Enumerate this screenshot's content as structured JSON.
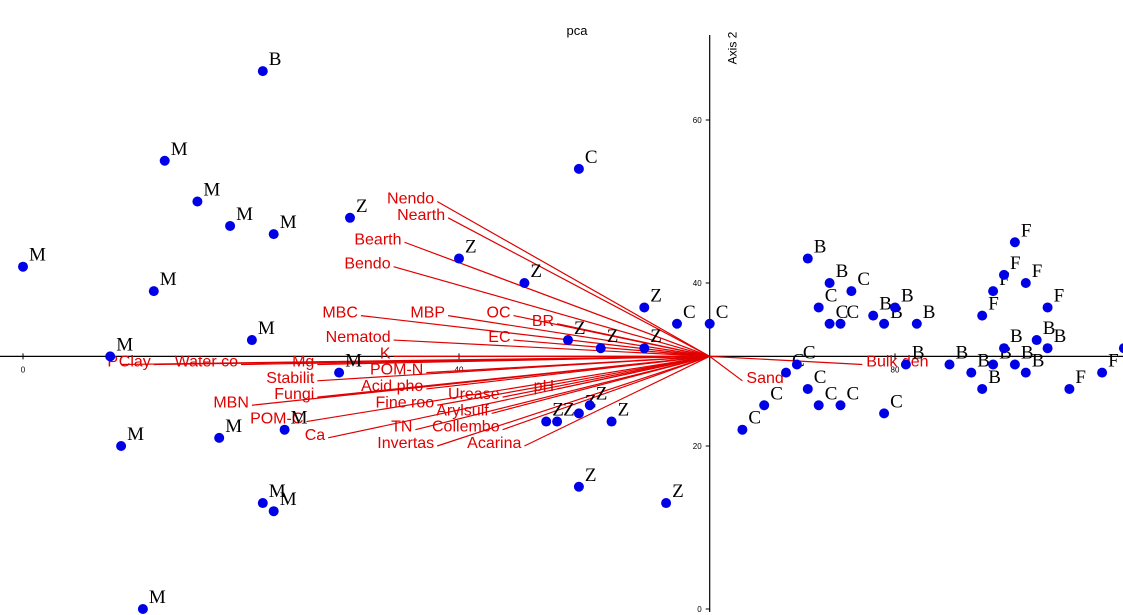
{
  "colors": {
    "points": "#0000e6",
    "vectors": "#e00000",
    "axes": "#000000"
  },
  "chart_data": {
    "type": "scatter",
    "title": "pca",
    "xlabel": "",
    "ylabel": "Axis 2",
    "x_ticks": [
      "0",
      "40",
      "80"
    ],
    "y_ticks": [
      "0",
      "20",
      "40",
      "60"
    ],
    "y_axis_at_x": 63,
    "x_axis_at_y": 31,
    "points": [
      {
        "x": 22,
        "y": 66,
        "label": "B"
      },
      {
        "x": 51,
        "y": 54,
        "label": "C"
      },
      {
        "x": 30,
        "y": 48,
        "label": "Z"
      },
      {
        "x": 40,
        "y": 43,
        "label": "Z"
      },
      {
        "x": 46,
        "y": 40,
        "label": "Z"
      },
      {
        "x": 57,
        "y": 37,
        "label": "Z"
      },
      {
        "x": 60,
        "y": 35,
        "label": "C"
      },
      {
        "x": 63,
        "y": 35,
        "label": "C"
      },
      {
        "x": 50,
        "y": 33,
        "label": "Z"
      },
      {
        "x": 53,
        "y": 32,
        "label": "Z"
      },
      {
        "x": 57,
        "y": 32,
        "label": "Z"
      },
      {
        "x": 29,
        "y": 29,
        "label": "M"
      },
      {
        "x": 8,
        "y": 31,
        "label": "M"
      },
      {
        "x": 0,
        "y": 42,
        "label": "M"
      },
      {
        "x": 13,
        "y": 55,
        "label": "M"
      },
      {
        "x": 12,
        "y": 39,
        "label": "M"
      },
      {
        "x": 16,
        "y": 50,
        "label": "M"
      },
      {
        "x": 19,
        "y": 47,
        "label": "M"
      },
      {
        "x": 23,
        "y": 46,
        "label": "M"
      },
      {
        "x": 21,
        "y": 33,
        "label": "M"
      },
      {
        "x": 9,
        "y": 20,
        "label": "M"
      },
      {
        "x": 18,
        "y": 21,
        "label": "M"
      },
      {
        "x": 24,
        "y": 22,
        "label": "M"
      },
      {
        "x": 22,
        "y": 13,
        "label": "M"
      },
      {
        "x": 23,
        "y": 12,
        "label": "M"
      },
      {
        "x": 11,
        "y": 0,
        "label": "M"
      },
      {
        "x": 48,
        "y": 23,
        "label": "Z"
      },
      {
        "x": 49,
        "y": 23,
        "label": "Z"
      },
      {
        "x": 51,
        "y": 24,
        "label": "Z"
      },
      {
        "x": 52,
        "y": 25,
        "label": "Z"
      },
      {
        "x": 54,
        "y": 23,
        "label": "Z"
      },
      {
        "x": 51,
        "y": 15,
        "label": "Z"
      },
      {
        "x": 59,
        "y": 13,
        "label": "Z"
      },
      {
        "x": 72,
        "y": 43,
        "label": "B"
      },
      {
        "x": 74,
        "y": 40,
        "label": "B"
      },
      {
        "x": 76,
        "y": 39,
        "label": "C"
      },
      {
        "x": 73,
        "y": 37,
        "label": "C"
      },
      {
        "x": 74,
        "y": 35,
        "label": "C"
      },
      {
        "x": 75,
        "y": 35,
        "label": "C"
      },
      {
        "x": 78,
        "y": 36,
        "label": "B"
      },
      {
        "x": 79,
        "y": 35,
        "label": "B"
      },
      {
        "x": 80,
        "y": 37,
        "label": "B"
      },
      {
        "x": 82,
        "y": 35,
        "label": "B"
      },
      {
        "x": 81,
        "y": 30,
        "label": "B"
      },
      {
        "x": 85,
        "y": 30,
        "label": "B"
      },
      {
        "x": 87,
        "y": 29,
        "label": "B"
      },
      {
        "x": 88,
        "y": 27,
        "label": "B"
      },
      {
        "x": 89,
        "y": 30,
        "label": "B"
      },
      {
        "x": 90,
        "y": 32,
        "label": "B"
      },
      {
        "x": 91,
        "y": 30,
        "label": "B"
      },
      {
        "x": 92,
        "y": 29,
        "label": "B"
      },
      {
        "x": 93,
        "y": 33,
        "label": "B"
      },
      {
        "x": 94,
        "y": 32,
        "label": "B"
      },
      {
        "x": 88,
        "y": 36,
        "label": "F"
      },
      {
        "x": 89,
        "y": 39,
        "label": "F"
      },
      {
        "x": 90,
        "y": 41,
        "label": "F"
      },
      {
        "x": 91,
        "y": 45,
        "label": "F"
      },
      {
        "x": 92,
        "y": 40,
        "label": "F"
      },
      {
        "x": 94,
        "y": 37,
        "label": "F"
      },
      {
        "x": 96,
        "y": 27,
        "label": "F"
      },
      {
        "x": 99,
        "y": 29,
        "label": "F"
      },
      {
        "x": 101,
        "y": 32,
        "label": "F"
      },
      {
        "x": 102,
        "y": 34,
        "label": "F"
      },
      {
        "x": 103,
        "y": 35,
        "label": "F"
      },
      {
        "x": 70,
        "y": 29,
        "label": "C"
      },
      {
        "x": 71,
        "y": 30,
        "label": "C"
      },
      {
        "x": 68,
        "y": 25,
        "label": "C"
      },
      {
        "x": 72,
        "y": 27,
        "label": "C"
      },
      {
        "x": 73,
        "y": 25,
        "label": "C"
      },
      {
        "x": 75,
        "y": 25,
        "label": "C"
      },
      {
        "x": 79,
        "y": 24,
        "label": "C"
      },
      {
        "x": 66,
        "y": 22,
        "label": "C"
      }
    ],
    "vectors": [
      {
        "name": "Nendo",
        "x": 38,
        "y": 50
      },
      {
        "name": "Nearth",
        "x": 39,
        "y": 48
      },
      {
        "name": "Bearth",
        "x": 35,
        "y": 45
      },
      {
        "name": "Bendo",
        "x": 34,
        "y": 42
      },
      {
        "name": "MBC",
        "x": 31,
        "y": 36
      },
      {
        "name": "MBP",
        "x": 39,
        "y": 36
      },
      {
        "name": "OC",
        "x": 45,
        "y": 36
      },
      {
        "name": "BR",
        "x": 49,
        "y": 35
      },
      {
        "name": "Nematod",
        "x": 34,
        "y": 33
      },
      {
        "name": "EC",
        "x": 45,
        "y": 33
      },
      {
        "name": "K",
        "x": 34,
        "y": 31
      },
      {
        "name": "Mg",
        "x": 27,
        "y": 30
      },
      {
        "name": "Water co",
        "x": 20,
        "y": 30
      },
      {
        "name": "Clay",
        "x": 12,
        "y": 30
      },
      {
        "name": "P",
        "x": 9,
        "y": 30
      },
      {
        "name": "POM-N",
        "x": 37,
        "y": 29
      },
      {
        "name": "Stabilit",
        "x": 27,
        "y": 28
      },
      {
        "name": "pH",
        "x": 49,
        "y": 27
      },
      {
        "name": "Acid pho",
        "x": 37,
        "y": 27
      },
      {
        "name": "Fungi",
        "x": 27,
        "y": 26
      },
      {
        "name": "Urease",
        "x": 44,
        "y": 26
      },
      {
        "name": "Fine roo",
        "x": 38,
        "y": 25
      },
      {
        "name": "MBN",
        "x": 21,
        "y": 25
      },
      {
        "name": "Arylsulf",
        "x": 43,
        "y": 24
      },
      {
        "name": "POM-C",
        "x": 26,
        "y": 23
      },
      {
        "name": "TN",
        "x": 36,
        "y": 22
      },
      {
        "name": "Ca",
        "x": 28,
        "y": 21
      },
      {
        "name": "Collembo",
        "x": 44,
        "y": 22
      },
      {
        "name": "Invertas",
        "x": 38,
        "y": 20
      },
      {
        "name": "Acarina",
        "x": 46,
        "y": 20
      },
      {
        "name": "Bulk den",
        "x": 77,
        "y": 30
      },
      {
        "name": "Sand",
        "x": 66,
        "y": 28
      }
    ]
  }
}
